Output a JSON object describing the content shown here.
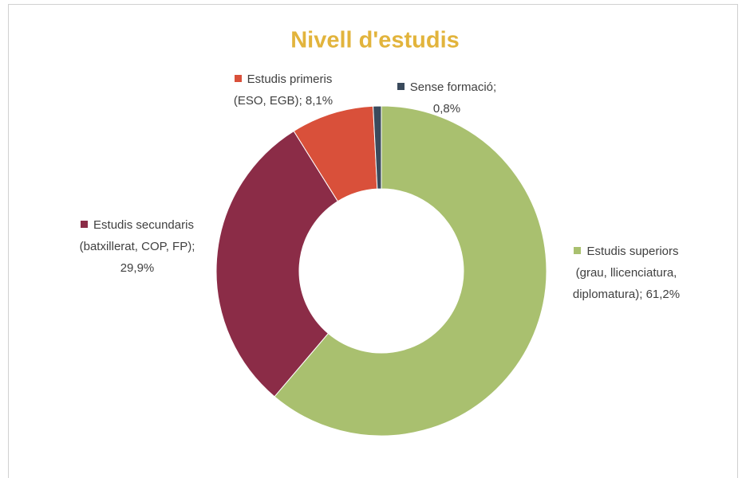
{
  "chart_data": {
    "type": "donut",
    "title": "Nivell d'estudis",
    "categories": [
      "Estudis superiors (grau, llicenciatura, diplomatura)",
      "Estudis secundaris (batxillerat, COP, FP)",
      "Estudis primeris (ESO, EGB)",
      "Sense formació"
    ],
    "values": [
      61.2,
      29.9,
      8.1,
      0.8
    ],
    "value_labels": [
      "61,2%",
      "29,9%",
      "8,1%",
      "0,8%"
    ],
    "label_separator": ";",
    "colors": [
      "#a9c06f",
      "#8b2c47",
      "#d9503a",
      "#3a4a5c"
    ]
  }
}
